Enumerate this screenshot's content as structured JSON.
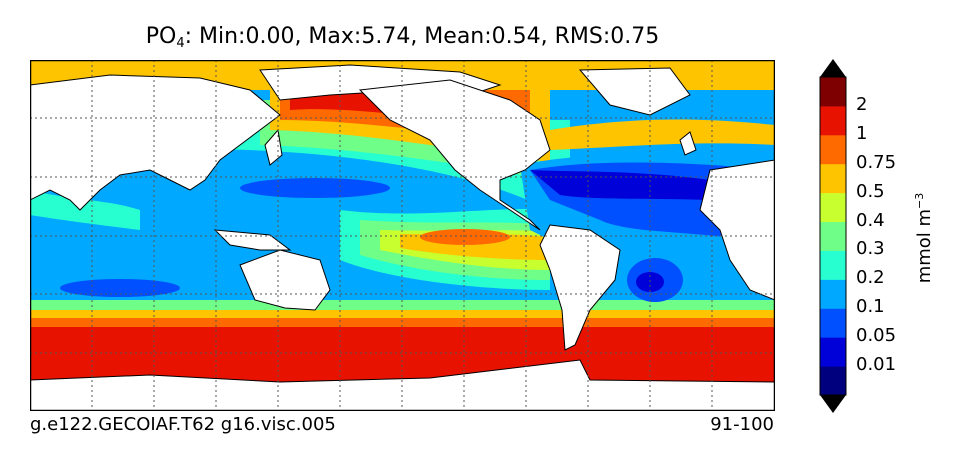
{
  "title": {
    "var_main": "PO",
    "var_sub": "4",
    "stats": ": Min:0.00, Max:5.74, Mean:0.54, RMS:0.75"
  },
  "footer": {
    "case": "g.e122.GECOIAF.T62 g16.visc.005",
    "years": "91-100"
  },
  "colorbar": {
    "unit_main": "mmol m",
    "unit_sup": "−3",
    "ticks": [
      "0.01",
      "0.05",
      "0.1",
      "0.2",
      "0.3",
      "0.4",
      "0.5",
      "0.75",
      "1",
      "2"
    ],
    "colors": [
      "#00007f",
      "#0000d8",
      "#0050ff",
      "#00a8ff",
      "#27ffd0",
      "#6fff88",
      "#c8ff2f",
      "#ffc400",
      "#ff6a00",
      "#e81200",
      "#7f0000"
    ],
    "under_color": "#000000",
    "over_color": "#000000"
  },
  "colors": {
    "land": "#ffffff",
    "coastline": "#000000",
    "gridline": "#555555",
    "contour": "#222222"
  }
}
